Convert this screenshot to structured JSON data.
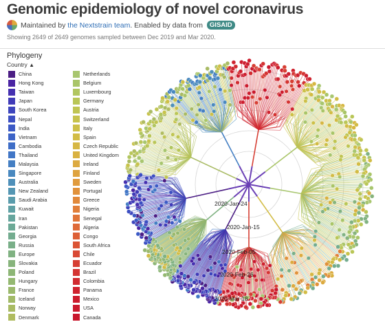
{
  "title": "Genomic epidemiology of novel coronavirus",
  "byline": {
    "prefix": "Maintained by",
    "team_link": "the Nextstrain team",
    "middle": ". Enabled by data from",
    "badge": "GISAID"
  },
  "summary": "Showing 2649 of 2649 genomes sampled between Dec 2019 and Mar 2020.",
  "panel": {
    "heading": "Phylogeny",
    "legend_title": "Country",
    "legend_toggle_icon": "caret-up-icon"
  },
  "legend": [
    {
      "label": "China",
      "color": "#4b1d84"
    },
    {
      "label": "Hong Kong",
      "color": "#4a24a3"
    },
    {
      "label": "Taiwan",
      "color": "#4530b0"
    },
    {
      "label": "Japan",
      "color": "#403bb8"
    },
    {
      "label": "South Korea",
      "color": "#3d45bd"
    },
    {
      "label": "Nepal",
      "color": "#3c4fc2"
    },
    {
      "label": "India",
      "color": "#3b59c5"
    },
    {
      "label": "Vietnam",
      "color": "#3c63c7"
    },
    {
      "label": "Cambodia",
      "color": "#3e6dc7"
    },
    {
      "label": "Thailand",
      "color": "#4176c6"
    },
    {
      "label": "Malaysia",
      "color": "#447fc3"
    },
    {
      "label": "Singapore",
      "color": "#4988bf"
    },
    {
      "label": "Australia",
      "color": "#4e8fb9"
    },
    {
      "label": "New Zealand",
      "color": "#5496b3"
    },
    {
      "label": "Saudi Arabia",
      "color": "#5a9cac"
    },
    {
      "label": "Kuwait",
      "color": "#60a1a5"
    },
    {
      "label": "Iran",
      "color": "#66a59d"
    },
    {
      "label": "Pakistan",
      "color": "#6ca996"
    },
    {
      "label": "Georgia",
      "color": "#73ac8f"
    },
    {
      "label": "Russia",
      "color": "#79af88"
    },
    {
      "label": "Europe",
      "color": "#80b282"
    },
    {
      "label": "Slovakia",
      "color": "#87b47c"
    },
    {
      "label": "Poland",
      "color": "#8db676"
    },
    {
      "label": "Hungary",
      "color": "#94b871"
    },
    {
      "label": "France",
      "color": "#9bb96c"
    },
    {
      "label": "Iceland",
      "color": "#a2ba68"
    },
    {
      "label": "Norway",
      "color": "#a9bb64"
    },
    {
      "label": "Denmark",
      "color": "#b0bc60"
    },
    {
      "label": "Netherlands",
      "color": "#a8c66f"
    },
    {
      "label": "Belgium",
      "color": "#a9c568"
    },
    {
      "label": "Luxembourg",
      "color": "#b1c65f"
    },
    {
      "label": "Germany",
      "color": "#b9c657"
    },
    {
      "label": "Austria",
      "color": "#c0c552"
    },
    {
      "label": "Switzerland",
      "color": "#c7c34c"
    },
    {
      "label": "Italy",
      "color": "#cdc048"
    },
    {
      "label": "Spain",
      "color": "#d2bc45"
    },
    {
      "label": "Czech Republic",
      "color": "#d6b743"
    },
    {
      "label": "United Kingdom",
      "color": "#d9b141"
    },
    {
      "label": "Ireland",
      "color": "#dcaa40"
    },
    {
      "label": "Finland",
      "color": "#dea33f"
    },
    {
      "label": "Sweden",
      "color": "#e09b3e"
    },
    {
      "label": "Portugal",
      "color": "#e1923c"
    },
    {
      "label": "Greece",
      "color": "#e1893b"
    },
    {
      "label": "Nigeria",
      "color": "#e17f3a"
    },
    {
      "label": "Senegal",
      "color": "#e07539"
    },
    {
      "label": "Algeria",
      "color": "#df6a38"
    },
    {
      "label": "Congo",
      "color": "#dd5f36"
    },
    {
      "label": "South Africa",
      "color": "#db5435"
    },
    {
      "label": "Chile",
      "color": "#d94934"
    },
    {
      "label": "Ecuador",
      "color": "#d63e33"
    },
    {
      "label": "Brazil",
      "color": "#d43432"
    },
    {
      "label": "Colombia",
      "color": "#d12b30"
    },
    {
      "label": "Panama",
      "color": "#cf232f"
    },
    {
      "label": "Mexico",
      "color": "#cd1d2e"
    },
    {
      "label": "USA",
      "color": "#cb1a2d"
    },
    {
      "label": "Canada",
      "color": "#c9172c"
    }
  ],
  "axis": {
    "date_labels": [
      "2020-Jan-24",
      "2020-Jan-15",
      "2020-Feb-05",
      "2020-Feb-26",
      "2020-Mar-18"
    ]
  }
}
